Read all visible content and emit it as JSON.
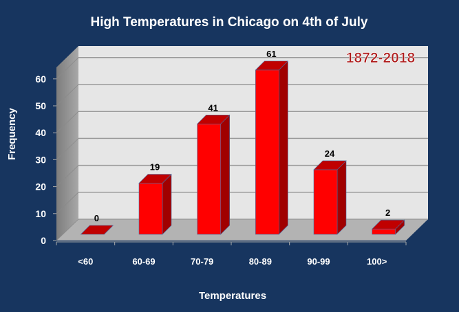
{
  "chart_data": {
    "type": "bar",
    "title": "High Temperatures in Chicago on 4th of July",
    "annotation": "1872-2018",
    "xlabel": "Temperatures",
    "ylabel": "Frequency",
    "categories": [
      "<60",
      "60-69",
      "70-79",
      "80-89",
      "90-99",
      "100>"
    ],
    "values": [
      0,
      19,
      41,
      61,
      24,
      2
    ],
    "ylim": [
      0,
      65
    ],
    "yticks": [
      0,
      10,
      20,
      30,
      40,
      50,
      60
    ],
    "grid": true,
    "colors": {
      "bar_front": "#ff0000",
      "bar_top": "#c00000",
      "bar_side": "#a00000",
      "background": "#17355f",
      "annotation": "#b01c1c"
    }
  }
}
